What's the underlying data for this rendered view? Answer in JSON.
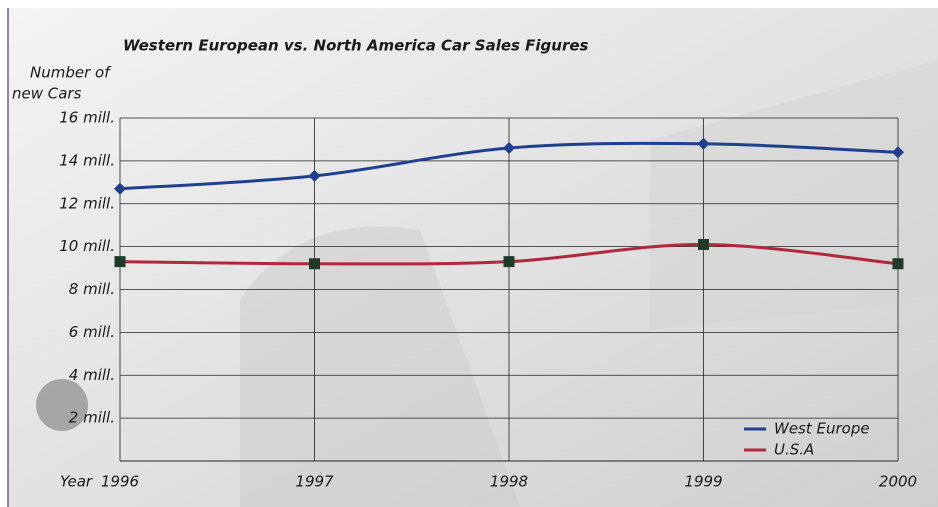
{
  "chart_data": {
    "type": "line",
    "title": "Western European vs. North America Car Sales Figures",
    "y_label": [
      "Number of",
      "new Cars"
    ],
    "x_label": "Year",
    "x": [
      1996,
      1997,
      1998,
      1999,
      2000
    ],
    "xlim": [
      1996,
      2000
    ],
    "xticks": [
      1996,
      1997,
      1998,
      1999,
      2000
    ],
    "ylim": [
      0,
      16
    ],
    "yticks": [
      {
        "value": 2,
        "label": "2 mill."
      },
      {
        "value": 4,
        "label": "4 mill."
      },
      {
        "value": 6,
        "label": "6 mill."
      },
      {
        "value": 8,
        "label": "8 mill."
      },
      {
        "value": 10,
        "label": "10 mill."
      },
      {
        "value": 12,
        "label": "12 mill."
      },
      {
        "value": 14,
        "label": "14 mill."
      },
      {
        "value": 16,
        "label": "16 mill."
      }
    ],
    "grid": true,
    "legend": "lower right",
    "series": [
      {
        "name": "West Europe",
        "color": "#1f3f8f",
        "marker": "diamond",
        "values": [
          12.7,
          13.3,
          14.6,
          14.8,
          14.4
        ]
      },
      {
        "name": "U.S.A",
        "color": "#b0283c",
        "marker": "square",
        "marker_color": "#1e3a28",
        "values": [
          9.3,
          9.2,
          9.3,
          10.1,
          9.2
        ]
      }
    ]
  }
}
